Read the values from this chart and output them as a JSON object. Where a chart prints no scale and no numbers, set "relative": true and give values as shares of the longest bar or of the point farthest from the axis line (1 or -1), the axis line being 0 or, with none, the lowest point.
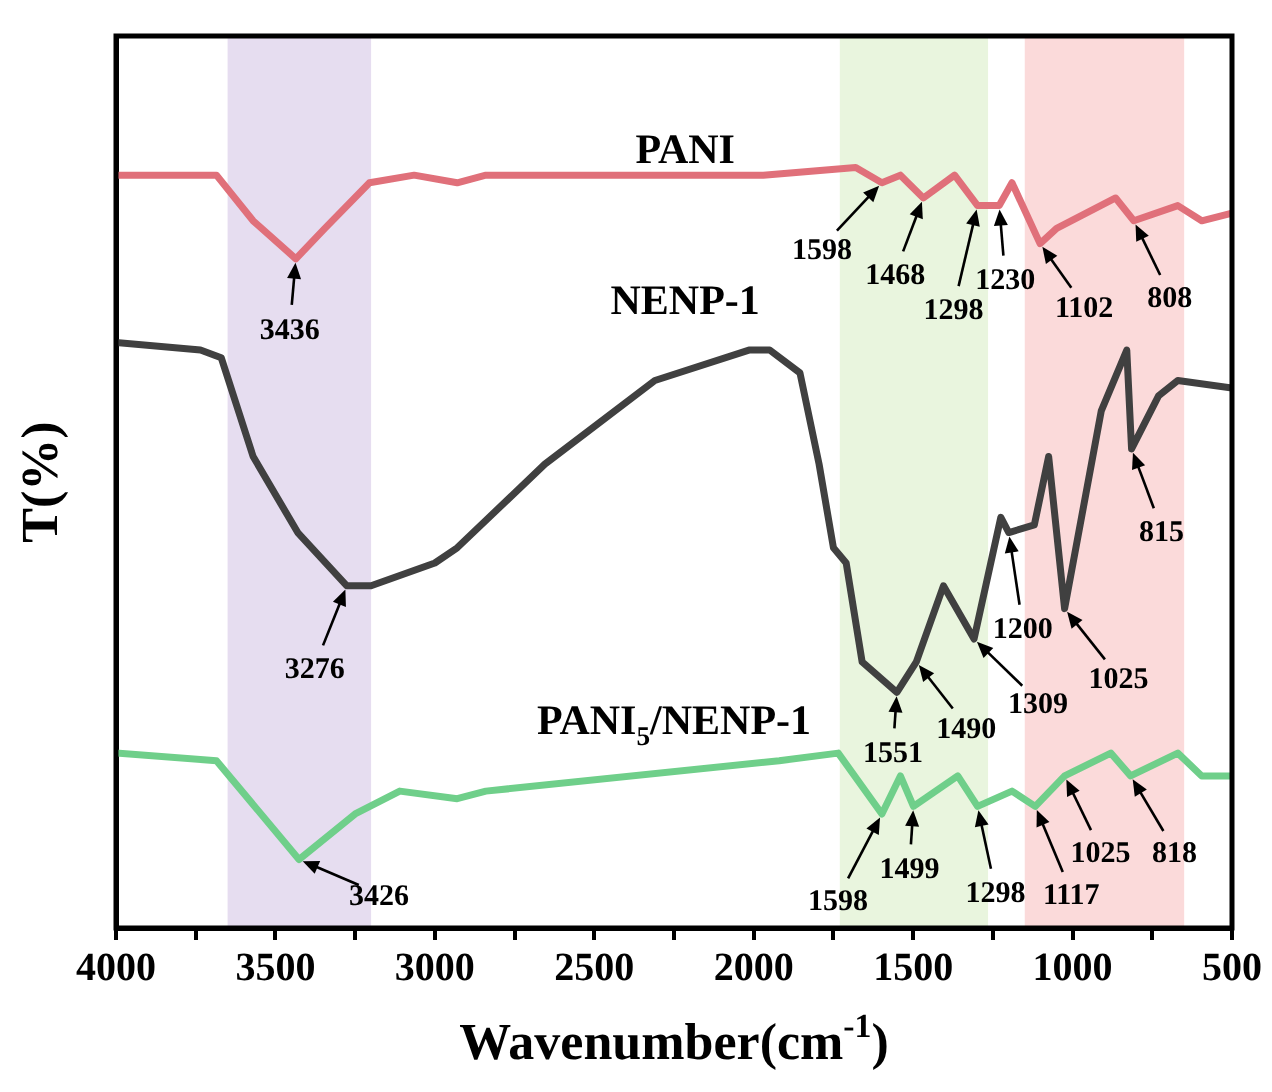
{
  "chart_data": {
    "type": "line",
    "relative": true,
    "xlabel": "Wavenumber(cm$^{-1}$)",
    "ylabel": "T(%)",
    "xlim": [
      4000,
      500
    ],
    "xticks": [
      4000,
      {
        "value": 3750,
        "label": null
      },
      3500,
      {
        "value": 3250,
        "label": null
      },
      3000,
      {
        "value": 2750,
        "label": null
      },
      2500,
      {
        "value": 2250,
        "label": null
      },
      2000,
      {
        "value": 1750,
        "label": null
      },
      1500,
      {
        "value": 1250,
        "label": null
      },
      1000,
      {
        "value": 750,
        "label": null
      },
      500
    ],
    "legend": false,
    "grid": false,
    "marker": "none",
    "line_style": "solid",
    "series": [
      {
        "name": "PANI",
        "color": "#e0707a",
        "x": [
          4000,
          3685,
          3570,
          3436,
          3345,
          3205,
          3065,
          2930,
          2840,
          1970,
          1680,
          1598,
          1540,
          1468,
          1370,
          1298,
          1250,
          1230,
          1190,
          1102,
          1050,
          865,
          808,
          670,
          595,
          500
        ],
        "values": [
          0.99,
          0.99,
          0.93,
          0.88,
          0.92,
          0.98,
          0.99,
          0.98,
          0.99,
          0.99,
          1,
          0.98,
          0.99,
          0.96,
          0.99,
          0.95,
          0.95,
          0.95,
          0.98,
          0.9,
          0.92,
          0.96,
          0.93,
          0.95,
          0.93,
          0.94
        ]
      },
      {
        "name": "NENP-1",
        "color": "#404040",
        "x": [
          4000,
          3735,
          3670,
          3570,
          3430,
          3276,
          3200,
          3000,
          2930,
          2655,
          2310,
          2015,
          1950,
          1855,
          1795,
          1750,
          1710,
          1660,
          1551,
          1490,
          1405,
          1309,
          1225,
          1200,
          1120,
          1075,
          1025,
          910,
          830,
          815,
          730,
          670,
          500
        ],
        "values": [
          0.77,
          0.76,
          0.75,
          0.62,
          0.52,
          0.45,
          0.45,
          0.48,
          0.5,
          0.61,
          0.72,
          0.76,
          0.76,
          0.73,
          0.61,
          0.5,
          0.48,
          0.35,
          0.31,
          0.35,
          0.45,
          0.38,
          0.54,
          0.52,
          0.53,
          0.62,
          0.42,
          0.68,
          0.76,
          0.63,
          0.7,
          0.72,
          0.71
        ]
      },
      {
        "name": "PANI$_{5}$/NENP-1",
        "color": "#6fcf8a",
        "x": [
          4000,
          3685,
          3426,
          3250,
          3110,
          2930,
          2840,
          1920,
          1735,
          1598,
          1540,
          1499,
          1360,
          1298,
          1190,
          1117,
          1025,
          880,
          818,
          670,
          595,
          500
        ],
        "values": [
          0.23,
          0.22,
          0.09,
          0.15,
          0.18,
          0.17,
          0.18,
          0.22,
          0.23,
          0.15,
          0.2,
          0.16,
          0.2,
          0.16,
          0.18,
          0.16,
          0.2,
          0.23,
          0.2,
          0.23,
          0.2,
          0.2
        ]
      }
    ],
    "bands": [
      {
        "axis": "x",
        "from": 3650,
        "to": 3200,
        "color": "#e6ddf0"
      },
      {
        "axis": "x",
        "from": 1730,
        "to": 1265,
        "color": "#e9f5de"
      },
      {
        "axis": "x",
        "from": 1150,
        "to": 650,
        "color": "#fbdada"
      }
    ],
    "annotations": [
      {
        "text": "3436",
        "x": 3436,
        "y": 0.88
      },
      {
        "text": "1598",
        "x": 1598,
        "y": 0.98
      },
      {
        "text": "1468",
        "x": 1468,
        "y": 0.96
      },
      {
        "text": "1298",
        "x": 1298,
        "y": 0.95
      },
      {
        "text": "1230",
        "x": 1230,
        "y": 0.95
      },
      {
        "text": "1102",
        "x": 1102,
        "y": 0.9
      },
      {
        "text": "808",
        "x": 808,
        "y": 0.93
      },
      {
        "text": "3276",
        "x": 3276,
        "y": 0.45
      },
      {
        "text": "1551",
        "x": 1551,
        "y": 0.31
      },
      {
        "text": "1490",
        "x": 1490,
        "y": 0.35
      },
      {
        "text": "1309",
        "x": 1309,
        "y": 0.38
      },
      {
        "text": "1200",
        "x": 1200,
        "y": 0.52
      },
      {
        "text": "1025",
        "x": 1025,
        "y": 0.42
      },
      {
        "text": "815",
        "x": 815,
        "y": 0.63
      },
      {
        "text": "3426",
        "x": 3426,
        "y": 0.09
      },
      {
        "text": "1598",
        "x": 1598,
        "y": 0.15
      },
      {
        "text": "1499",
        "x": 1499,
        "y": 0.16
      },
      {
        "text": "1298",
        "x": 1298,
        "y": 0.16
      },
      {
        "text": "1117",
        "x": 1117,
        "y": 0.16
      },
      {
        "text": "1025",
        "x": 1025,
        "y": 0.2
      },
      {
        "text": "818",
        "x": 818,
        "y": 0.2
      }
    ]
  }
}
